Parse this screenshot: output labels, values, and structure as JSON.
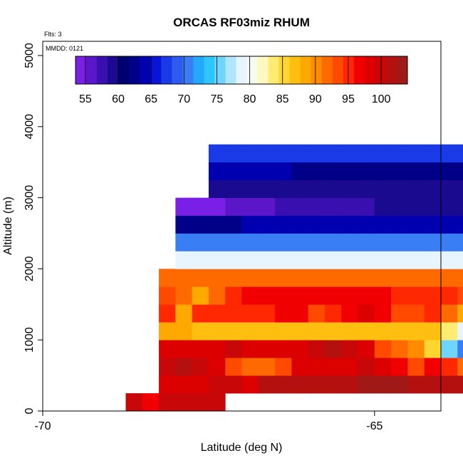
{
  "chart_data": {
    "type": "heatmap",
    "title": "ORCAS RF03miz RHUM",
    "subtitle_flts": "Flts: 3",
    "subtitle_mmdd": "MMDD: 0121",
    "xlabel": "Latitude (deg N)",
    "ylabel": "Altitude (m)",
    "xlim": [
      -70,
      -64
    ],
    "ylim": [
      0,
      5200
    ],
    "xticks": [
      -70,
      -65
    ],
    "yticks": [
      0,
      1000,
      2000,
      3000,
      4000,
      5000
    ],
    "colorbar": {
      "min": 53.5,
      "max": 104,
      "ticks": [
        55,
        60,
        65,
        70,
        75,
        80,
        85,
        90,
        95,
        100
      ],
      "colors": [
        "#7a1fe6",
        "#5b16c9",
        "#3a0fb0",
        "#1a0a8f",
        "#000070",
        "#000088",
        "#0000b0",
        "#0a14d6",
        "#1a3ae8",
        "#2e5af0",
        "#3a7ef5",
        "#22a8ff",
        "#2ec6ff",
        "#6fd5ff",
        "#b0e6ff",
        "#e6f5ff",
        "#f6faf0",
        "#fff8c0",
        "#ffec70",
        "#ffd630",
        "#ffbf10",
        "#ffa800",
        "#ff8c00",
        "#ff6a00",
        "#ff4a00",
        "#ff2800",
        "#f00000",
        "#dc0000",
        "#c80808",
        "#b41010",
        "#a01818"
      ]
    },
    "cell_width_deg": 0.25,
    "cell_height_m": 250,
    "rows": [
      {
        "alt": 0,
        "x0": -68.75,
        "values": [
          100,
          96,
          100,
          100,
          100,
          100
        ]
      },
      {
        "alt": 250,
        "x0": -68.25,
        "values": [
          99,
          99,
          99,
          100,
          100,
          99,
          101,
          101,
          101,
          102,
          102,
          102,
          103,
          103,
          103,
          101,
          101,
          102,
          102,
          101
        ]
      },
      {
        "alt": 500,
        "x0": -68.25,
        "values": [
          100,
          101,
          100,
          99,
          93,
          92,
          91,
          93,
          98,
          99,
          99,
          99,
          100,
          99,
          97,
          94,
          97,
          95,
          91,
          92
        ]
      },
      {
        "alt": 750,
        "x0": -68.25,
        "values": [
          98,
          98,
          99,
          99,
          100,
          99,
          99,
          98,
          98,
          100,
          101,
          100,
          99,
          94,
          92,
          90,
          85,
          76,
          70,
          78
        ]
      },
      {
        "alt": 1000,
        "x0": -68.25,
        "values": [
          89,
          88,
          87,
          87,
          87,
          87,
          87,
          87,
          87,
          87,
          87,
          87,
          87,
          87,
          87,
          87,
          87,
          83,
          78,
          79
        ]
      },
      {
        "alt": 1250,
        "x0": -68.25,
        "values": [
          95,
          88,
          95,
          95,
          95,
          95,
          95,
          96,
          96,
          93,
          95,
          97,
          99,
          97,
          93,
          93,
          95,
          92,
          89,
          84
        ]
      },
      {
        "alt": 1500,
        "x0": -68.25,
        "values": [
          94,
          92,
          89,
          91,
          95,
          96,
          96,
          96,
          96,
          96,
          96,
          96,
          96,
          96,
          95,
          95,
          95,
          95,
          93,
          89
        ]
      },
      {
        "alt": 1750,
        "x0": -68.25,
        "values": [
          91,
          91,
          91,
          91,
          91,
          91,
          91,
          91,
          91,
          91,
          91,
          91,
          91,
          91,
          91,
          91,
          91,
          91,
          91,
          91,
          91,
          91,
          91,
          91,
          90,
          89,
          88,
          87
        ]
      },
      {
        "alt": 2000,
        "x0": -68.0,
        "values": [
          79,
          79,
          79,
          79,
          79,
          79,
          79,
          79,
          79,
          79,
          79,
          79,
          79,
          79,
          79,
          79,
          79,
          79,
          79,
          79,
          79,
          79,
          79,
          79,
          79,
          79,
          79,
          79,
          79,
          79,
          79,
          79,
          79,
          79,
          79
        ]
      },
      {
        "alt": 2250,
        "x0": -68.0,
        "values": [
          71,
          71,
          71,
          71,
          71,
          71,
          71,
          71,
          71,
          71,
          71,
          71,
          71,
          71,
          71,
          71,
          71,
          71,
          71,
          71,
          71,
          71,
          71,
          71,
          71,
          71,
          71,
          71,
          71,
          71,
          71,
          71,
          71,
          71,
          71
        ]
      },
      {
        "alt": 2500,
        "x0": -68.0,
        "values": [
          63,
          63,
          63,
          63,
          64,
          64,
          64,
          64,
          64,
          64,
          64,
          64,
          64,
          64,
          64,
          64,
          64,
          64,
          64,
          64,
          65,
          65,
          65,
          65,
          65,
          65,
          65,
          65,
          65,
          65,
          65,
          65,
          66,
          66,
          66
        ]
      },
      {
        "alt": 2750,
        "x0": -68.0,
        "values": [
          55,
          55,
          55,
          56,
          56,
          56,
          57,
          57,
          57,
          58,
          58,
          58,
          59,
          59,
          59,
          59,
          59,
          59,
          59,
          59,
          60,
          60,
          60,
          60,
          60,
          61,
          61,
          61,
          62,
          62,
          62,
          63,
          63,
          65,
          65
        ]
      },
      {
        "alt": 3000,
        "x0": -67.5,
        "values": [
          60,
          60,
          60,
          60,
          60,
          60,
          60,
          60,
          60,
          60,
          60,
          60,
          60,
          60,
          60,
          60,
          60,
          60,
          60,
          60,
          60,
          60,
          60,
          60,
          60,
          60,
          62,
          62,
          63,
          63,
          64
        ]
      },
      {
        "alt": 3250,
        "x0": -67.5,
        "values": [
          64,
          64,
          64,
          64,
          64,
          63,
          63,
          63,
          63,
          63,
          63,
          63,
          63,
          63,
          63,
          63,
          63,
          63,
          63,
          63,
          63,
          63,
          63,
          63,
          63,
          63,
          64,
          64,
          65,
          65,
          66
        ]
      },
      {
        "alt": 3500,
        "x0": -67.5,
        "values": [
          68,
          68,
          68,
          68,
          68,
          68,
          68,
          68,
          68,
          68,
          68,
          68,
          68,
          68,
          68,
          68,
          68,
          68,
          68,
          68,
          68,
          68,
          68,
          68,
          68,
          68,
          68,
          68,
          68,
          68,
          68,
          68,
          68,
          68,
          68,
          68,
          68,
          68,
          68,
          68,
          68,
          68,
          68,
          68,
          68,
          68
        ]
      }
    ]
  }
}
